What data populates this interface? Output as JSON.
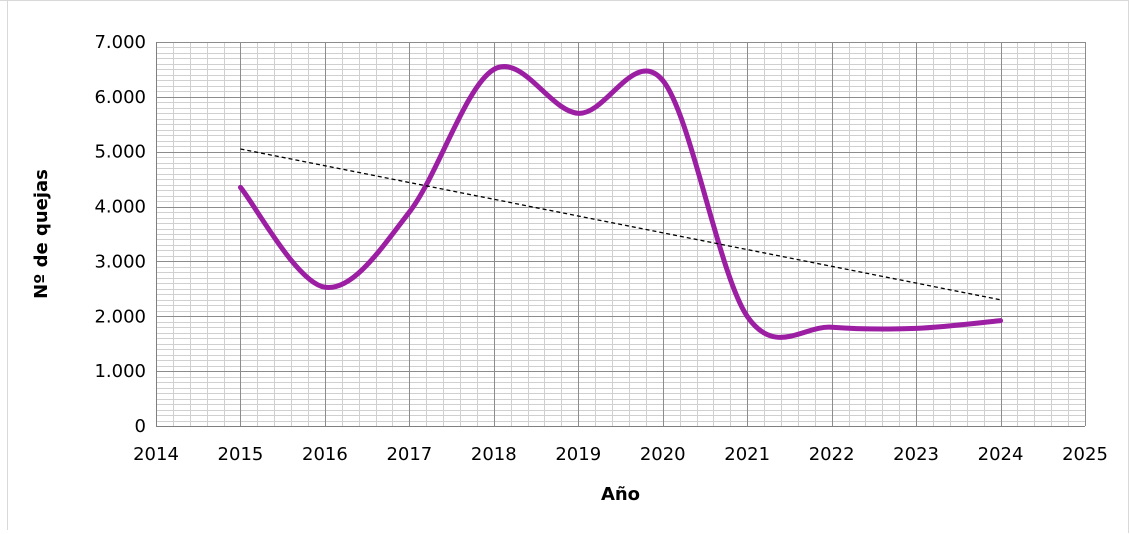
{
  "chart_data": {
    "type": "scatter",
    "title": "",
    "xlabel": "Año",
    "ylabel": "Nº de quejas",
    "xlim": [
      2014,
      2025
    ],
    "ylim": [
      0,
      7000
    ],
    "x_ticks": [
      "2014",
      "2015",
      "2016",
      "2017",
      "2018",
      "2019",
      "2020",
      "2021",
      "2022",
      "2023",
      "2024",
      "2025"
    ],
    "y_ticks": [
      "0",
      "1.000",
      "2.000",
      "3.000",
      "4.000",
      "5.000",
      "6.000",
      "7.000"
    ],
    "grid": true,
    "legend": "none",
    "series": [
      {
        "style": "smooth-line",
        "color": "#9b1ea3",
        "points": [
          {
            "x": 2015,
            "y": 4350
          },
          {
            "x": 2016,
            "y": 2530
          },
          {
            "x": 2017,
            "y": 3900
          },
          {
            "x": 2018,
            "y": 6500
          },
          {
            "x": 2019,
            "y": 5700
          },
          {
            "x": 2020,
            "y": 6300
          },
          {
            "x": 2021,
            "y": 2000
          },
          {
            "x": 2022,
            "y": 1800
          },
          {
            "x": 2023,
            "y": 1780
          },
          {
            "x": 2024,
            "y": 1920
          }
        ]
      },
      {
        "style": "dashed-trendline",
        "color": "#000000",
        "points": [
          {
            "x": 2015,
            "y": 5050
          },
          {
            "x": 2024,
            "y": 2300
          }
        ]
      }
    ]
  }
}
